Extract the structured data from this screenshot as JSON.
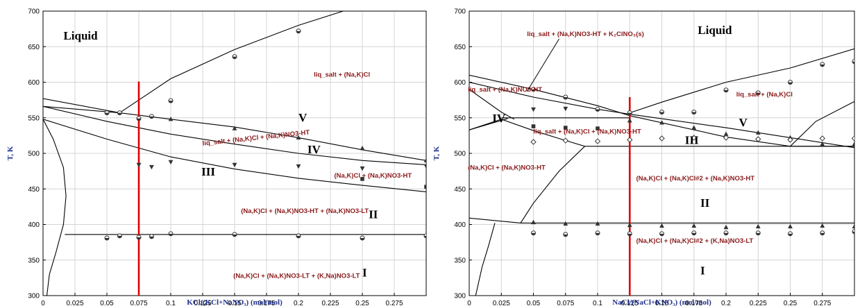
{
  "chart_data": [
    {
      "type": "scatter",
      "xlabel": "KCl/(KCl+NaNO₃) (mol/mol)",
      "ylabel": "T, K",
      "xlim": [
        0,
        0.3
      ],
      "ylim": [
        300,
        700
      ],
      "x_ticks": [
        "0",
        "0.025",
        "0.05",
        "0.075",
        "0.1",
        "0.125",
        "0.15",
        "0.175",
        "0.2",
        "0.225",
        "0.25",
        "0.275"
      ],
      "y_ticks": [
        "300",
        "350",
        "400",
        "450",
        "500",
        "550",
        "600",
        "650",
        "700"
      ],
      "grid": true,
      "line_color": "#000000",
      "marker_color": "#333333",
      "label_color": "#8b1a1a",
      "section_color": "#e00000",
      "section_x": 0.075,
      "section_range": [
        300,
        601
      ],
      "curves": [
        {
          "points": [
            [
              0.06,
              557
            ],
            [
              0.1,
              605
            ],
            [
              0.15,
              646
            ],
            [
              0.2,
              680
            ],
            [
              0.235,
              700
            ]
          ]
        },
        {
          "points": [
            [
              0,
              577
            ],
            [
              0.06,
              557
            ]
          ]
        },
        {
          "points": [
            [
              0,
              566
            ],
            [
              0.06,
              557
            ],
            [
              0.1,
              548
            ],
            [
              0.15,
              537
            ],
            [
              0.2,
              522
            ],
            [
              0.25,
              505
            ],
            [
              0.3,
              490
            ]
          ]
        },
        {
          "points": [
            [
              0,
              566
            ],
            [
              0.05,
              545
            ],
            [
              0.1,
              527
            ],
            [
              0.15,
              513
            ],
            [
              0.2,
              500
            ],
            [
              0.25,
              490
            ],
            [
              0.3,
              484
            ]
          ]
        },
        {
          "points": [
            [
              0,
              548
            ],
            [
              0.05,
              520
            ],
            [
              0.1,
              495
            ],
            [
              0.15,
              478
            ],
            [
              0.2,
              465
            ],
            [
              0.25,
              455
            ],
            [
              0.3,
              446
            ]
          ]
        },
        {
          "points": [
            [
              0.017,
              386
            ],
            [
              0.3,
              386
            ]
          ]
        },
        {
          "points": [
            [
              0,
              548
            ],
            [
              0.008,
              520
            ],
            [
              0.016,
              480
            ],
            [
              0.018,
              440
            ],
            [
              0.016,
              400
            ],
            [
              0.01,
              360
            ],
            [
              0.005,
              330
            ],
            [
              0.003,
              300
            ]
          ]
        }
      ],
      "points": [
        {
          "x": 0.05,
          "y": 557,
          "marker": "circle"
        },
        {
          "x": 0.06,
          "y": 557,
          "marker": "circle"
        },
        {
          "x": 0.075,
          "y": 549,
          "marker": "circle"
        },
        {
          "x": 0.085,
          "y": 552,
          "marker": "circle"
        },
        {
          "x": 0.1,
          "y": 574,
          "marker": "circle"
        },
        {
          "x": 0.15,
          "y": 636,
          "marker": "circle"
        },
        {
          "x": 0.2,
          "y": 672,
          "marker": "circle"
        },
        {
          "x": 0.1,
          "y": 548,
          "marker": "triangle"
        },
        {
          "x": 0.15,
          "y": 535,
          "marker": "triangle"
        },
        {
          "x": 0.2,
          "y": 522,
          "marker": "triangle"
        },
        {
          "x": 0.25,
          "y": 507,
          "marker": "triangle"
        },
        {
          "x": 0.3,
          "y": 490,
          "marker": "triangle"
        },
        {
          "x": 0.075,
          "y": 484,
          "marker": "tri_down"
        },
        {
          "x": 0.085,
          "y": 481,
          "marker": "tri_down"
        },
        {
          "x": 0.1,
          "y": 488,
          "marker": "tri_down"
        },
        {
          "x": 0.15,
          "y": 484,
          "marker": "tri_down"
        },
        {
          "x": 0.2,
          "y": 482,
          "marker": "tri_down"
        },
        {
          "x": 0.25,
          "y": 479,
          "marker": "tri_down"
        },
        {
          "x": 0.3,
          "y": 482,
          "marker": "tri_down"
        },
        {
          "x": 0.25,
          "y": 464,
          "marker": "square"
        },
        {
          "x": 0.3,
          "y": 453,
          "marker": "square"
        },
        {
          "x": 0.05,
          "y": 381,
          "marker": "circle"
        },
        {
          "x": 0.06,
          "y": 384,
          "marker": "circle"
        },
        {
          "x": 0.075,
          "y": 382,
          "marker": "circle"
        },
        {
          "x": 0.085,
          "y": 383,
          "marker": "circle"
        },
        {
          "x": 0.1,
          "y": 387,
          "marker": "circle"
        },
        {
          "x": 0.15,
          "y": 386,
          "marker": "circle"
        },
        {
          "x": 0.2,
          "y": 384,
          "marker": "circle"
        },
        {
          "x": 0.25,
          "y": 381,
          "marker": "circle"
        },
        {
          "x": 0.3,
          "y": 384,
          "marker": "circle"
        }
      ],
      "annotations": [
        {
          "text": "Liquid",
          "x": 0.016,
          "y": 660,
          "style": "liquid"
        },
        {
          "text": "liq_salt + (Na,K)Cl",
          "x": 0.212,
          "y": 608,
          "style": "phase"
        },
        {
          "text": "V",
          "x": 0.2,
          "y": 545,
          "style": "roman"
        },
        {
          "text": "liq_salt + (Na,K)Cl + (Na,K)NO3-HT",
          "x": 0.125,
          "y": 511,
          "style": "phase",
          "rotate": -6
        },
        {
          "text": "IV",
          "x": 0.207,
          "y": 500,
          "style": "roman"
        },
        {
          "text": "III",
          "x": 0.124,
          "y": 469,
          "style": "roman"
        },
        {
          "text": "(Na,K)Cl + (Na,K)NO3-HT",
          "x": 0.228,
          "y": 466,
          "style": "phase"
        },
        {
          "text": "(Na,K)Cl + (Na,K)NO3-HT + (Na,K)NO3-LT",
          "x": 0.155,
          "y": 416,
          "style": "phase"
        },
        {
          "text": "II",
          "x": 0.255,
          "y": 409,
          "style": "roman"
        },
        {
          "text": "(Na,K)Cl + (Na,K)NO3-LT + (K,Na)NO3-LT",
          "x": 0.149,
          "y": 325,
          "style": "phase"
        },
        {
          "text": "I",
          "x": 0.25,
          "y": 327,
          "style": "roman"
        }
      ]
    },
    {
      "type": "scatter",
      "xlabel": "NaCl/(NaCl+KNO₃) (mol/mol)",
      "ylabel": "T, K",
      "xlim": [
        0,
        0.3
      ],
      "ylim": [
        300,
        700
      ],
      "x_ticks": [
        "0",
        "0.025",
        "0.05",
        "0.075",
        "0.1",
        "0.125",
        "0.15",
        "0.175",
        "0.2",
        "0.225",
        "0.25",
        "0.275"
      ],
      "y_ticks": [
        "300",
        "350",
        "400",
        "450",
        "500",
        "550",
        "600",
        "650",
        "700"
      ],
      "grid": true,
      "line_color": "#000000",
      "marker_color": "#333333",
      "label_color": "#8b1a1a",
      "section_color": "#e00000",
      "section_x": 0.125,
      "section_range": [
        300,
        579
      ],
      "curves": [
        {
          "points": [
            [
              0,
              610
            ],
            [
              0.05,
              590
            ],
            [
              0.1,
              567
            ],
            [
              0.125,
              553
            ],
            [
              0.2,
              523
            ],
            [
              0.25,
              510
            ],
            [
              0.3,
              510
            ]
          ]
        },
        {
          "points": [
            [
              0,
              600
            ],
            [
              0.05,
              579
            ],
            [
              0.1,
              562
            ],
            [
              0.125,
              555
            ],
            [
              0.2,
              536
            ],
            [
              0.25,
              522
            ],
            [
              0.3,
              508
            ]
          ]
        },
        {
          "points": [
            [
              0.125,
              557
            ],
            [
              0.15,
              572
            ],
            [
              0.2,
              600
            ],
            [
              0.25,
              620
            ],
            [
              0.3,
              647
            ]
          ]
        },
        {
          "points": [
            [
              0.025,
              550
            ],
            [
              0.125,
              550
            ]
          ]
        },
        {
          "points": [
            [
              0,
              533
            ],
            [
              0.03,
              549
            ]
          ]
        },
        {
          "points": [
            [
              0,
              590
            ],
            [
              0.025,
              558
            ],
            [
              0.035,
              548
            ]
          ]
        },
        {
          "points": [
            [
              0,
              533
            ],
            [
              0.025,
              548
            ],
            [
              0.05,
              532
            ],
            [
              0.075,
              518
            ],
            [
              0.09,
              510
            ]
          ]
        },
        {
          "points": [
            [
              0.09,
              510
            ],
            [
              0.3,
              510
            ]
          ]
        },
        {
          "points": [
            [
              0.25,
              510
            ],
            [
              0.27,
              545
            ],
            [
              0.3,
              573
            ]
          ]
        },
        {
          "points": [
            [
              0.09,
              510
            ],
            [
              0.07,
              475
            ],
            [
              0.05,
              430
            ],
            [
              0.04,
              402
            ]
          ]
        },
        {
          "points": [
            [
              0,
              409
            ],
            [
              0.04,
              402
            ],
            [
              0.3,
              402
            ]
          ]
        },
        {
          "points": [
            [
              0.02,
              402
            ],
            [
              0.015,
              370
            ],
            [
              0.01,
              340
            ],
            [
              0.005,
              300
            ]
          ]
        }
      ],
      "points": [
        {
          "x": 0.05,
          "y": 590,
          "marker": "circle"
        },
        {
          "x": 0.075,
          "y": 579,
          "marker": "circle"
        },
        {
          "x": 0.1,
          "y": 562,
          "marker": "circle"
        },
        {
          "x": 0.125,
          "y": 557,
          "marker": "circle"
        },
        {
          "x": 0.15,
          "y": 558,
          "marker": "circle"
        },
        {
          "x": 0.175,
          "y": 558,
          "marker": "circle"
        },
        {
          "x": 0.2,
          "y": 589,
          "marker": "circle"
        },
        {
          "x": 0.225,
          "y": 585,
          "marker": "circle"
        },
        {
          "x": 0.25,
          "y": 600,
          "marker": "circle"
        },
        {
          "x": 0.275,
          "y": 625,
          "marker": "circle"
        },
        {
          "x": 0.3,
          "y": 629,
          "marker": "circle"
        },
        {
          "x": 0.05,
          "y": 562,
          "marker": "tri_down"
        },
        {
          "x": 0.075,
          "y": 563,
          "marker": "tri_down"
        },
        {
          "x": 0.125,
          "y": 546,
          "marker": "triangle"
        },
        {
          "x": 0.15,
          "y": 543,
          "marker": "triangle"
        },
        {
          "x": 0.175,
          "y": 536,
          "marker": "triangle"
        },
        {
          "x": 0.2,
          "y": 527,
          "marker": "triangle"
        },
        {
          "x": 0.225,
          "y": 529,
          "marker": "triangle"
        },
        {
          "x": 0.25,
          "y": 522,
          "marker": "triangle"
        },
        {
          "x": 0.275,
          "y": 513,
          "marker": "triangle"
        },
        {
          "x": 0.3,
          "y": 513,
          "marker": "triangle"
        },
        {
          "x": 0.05,
          "y": 538,
          "marker": "square"
        },
        {
          "x": 0.075,
          "y": 536,
          "marker": "square"
        },
        {
          "x": 0.1,
          "y": 535,
          "marker": "square"
        },
        {
          "x": 0.05,
          "y": 516,
          "marker": "diamond"
        },
        {
          "x": 0.075,
          "y": 518,
          "marker": "diamond"
        },
        {
          "x": 0.1,
          "y": 517,
          "marker": "diamond"
        },
        {
          "x": 0.125,
          "y": 519,
          "marker": "diamond"
        },
        {
          "x": 0.15,
          "y": 521,
          "marker": "diamond"
        },
        {
          "x": 0.175,
          "y": 522,
          "marker": "diamond"
        },
        {
          "x": 0.2,
          "y": 522,
          "marker": "diamond"
        },
        {
          "x": 0.225,
          "y": 520,
          "marker": "diamond"
        },
        {
          "x": 0.25,
          "y": 519,
          "marker": "diamond"
        },
        {
          "x": 0.275,
          "y": 521,
          "marker": "diamond"
        },
        {
          "x": 0.3,
          "y": 521,
          "marker": "diamond"
        },
        {
          "x": 0.05,
          "y": 403,
          "marker": "triangle"
        },
        {
          "x": 0.075,
          "y": 401,
          "marker": "triangle"
        },
        {
          "x": 0.1,
          "y": 401,
          "marker": "triangle"
        },
        {
          "x": 0.125,
          "y": 399,
          "marker": "triangle"
        },
        {
          "x": 0.15,
          "y": 398,
          "marker": "triangle"
        },
        {
          "x": 0.175,
          "y": 398,
          "marker": "triangle"
        },
        {
          "x": 0.2,
          "y": 396,
          "marker": "triangle"
        },
        {
          "x": 0.225,
          "y": 397,
          "marker": "triangle"
        },
        {
          "x": 0.25,
          "y": 397,
          "marker": "triangle"
        },
        {
          "x": 0.275,
          "y": 398,
          "marker": "triangle"
        },
        {
          "x": 0.3,
          "y": 397,
          "marker": "triangle"
        },
        {
          "x": 0.05,
          "y": 388,
          "marker": "circle"
        },
        {
          "x": 0.075,
          "y": 386,
          "marker": "circle"
        },
        {
          "x": 0.1,
          "y": 388,
          "marker": "circle"
        },
        {
          "x": 0.125,
          "y": 387,
          "marker": "circle"
        },
        {
          "x": 0.15,
          "y": 387,
          "marker": "circle"
        },
        {
          "x": 0.175,
          "y": 388,
          "marker": "circle"
        },
        {
          "x": 0.2,
          "y": 388,
          "marker": "circle"
        },
        {
          "x": 0.225,
          "y": 388,
          "marker": "circle"
        },
        {
          "x": 0.25,
          "y": 387,
          "marker": "circle"
        },
        {
          "x": 0.275,
          "y": 388,
          "marker": "circle"
        },
        {
          "x": 0.3,
          "y": 390,
          "marker": "circle"
        }
      ],
      "annotations": [
        {
          "text": "Liquid",
          "x": 0.178,
          "y": 668,
          "style": "liquid"
        },
        {
          "text": "liq_salt + (Na,K)NO3-HT + K₂ClNO₃(s)",
          "x": 0.045,
          "y": 665,
          "style": "phase"
        },
        {
          "text": "liq_salt + (Na,K)NO3-HT",
          "x": -0.001,
          "y": 587,
          "style": "phase"
        },
        {
          "text": "IV",
          "x": 0.018,
          "y": 544,
          "style": "roman"
        },
        {
          "text": "liq_salt + (Na,K)Cl + (Na,K)NO3-HT",
          "x": 0.05,
          "y": 528,
          "style": "phase"
        },
        {
          "text": "III",
          "x": 0.168,
          "y": 513,
          "style": "roman"
        },
        {
          "text": "liq_salt + (Na,K)Cl",
          "x": 0.208,
          "y": 580,
          "style": "phase"
        },
        {
          "text": "V",
          "x": 0.21,
          "y": 538,
          "style": "roman"
        },
        {
          "text": "(Na,K)Cl + (Na,K)NO3-HT",
          "x": -0.001,
          "y": 477,
          "style": "phase"
        },
        {
          "text": "(Na,K)Cl + (Na,K)Cl#2 + (Na,K)NO3-HT",
          "x": 0.13,
          "y": 462,
          "style": "phase"
        },
        {
          "text": "II",
          "x": 0.18,
          "y": 425,
          "style": "roman"
        },
        {
          "text": "(Na,K)Cl + (Na,K)Cl#2 + (K,Na)NO3-LT",
          "x": 0.13,
          "y": 374,
          "style": "phase"
        },
        {
          "text": "I",
          "x": 0.18,
          "y": 330,
          "style": "roman"
        }
      ],
      "pointer": {
        "from": [
          0.07,
          661
        ],
        "to": [
          0.045,
          587
        ]
      }
    }
  ]
}
